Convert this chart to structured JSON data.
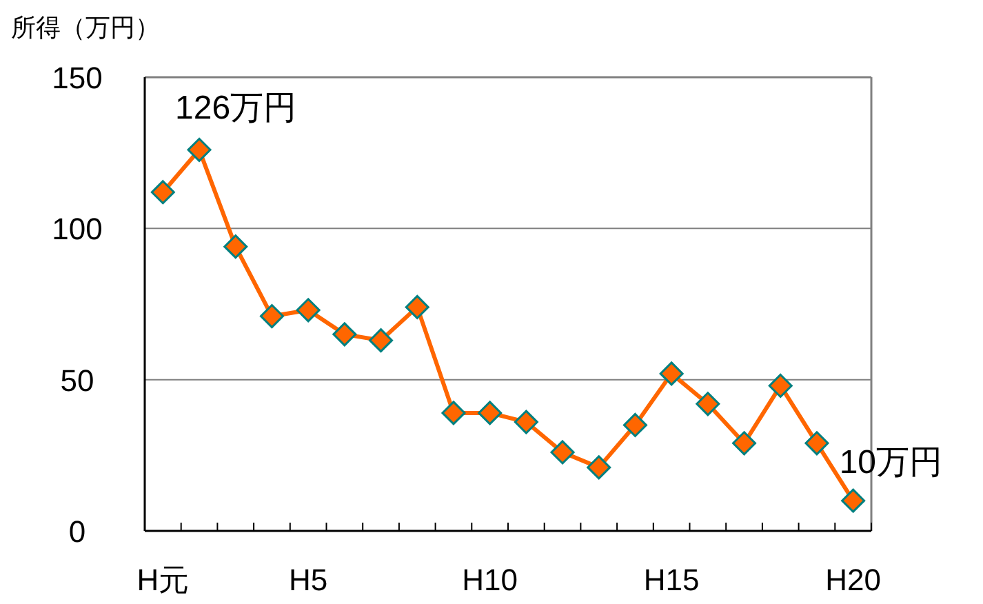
{
  "chart_data": {
    "type": "line",
    "ylabel": "所得（万円）",
    "categories": [
      "H元",
      null,
      null,
      null,
      "H5",
      null,
      null,
      null,
      null,
      "H10",
      null,
      null,
      null,
      null,
      "H15",
      null,
      null,
      null,
      null,
      "H20"
    ],
    "series": [
      {
        "color": "#ff6600",
        "values": [
          112,
          126,
          94,
          71,
          73,
          65,
          63,
          74,
          39,
          39,
          36,
          26,
          21,
          35,
          52,
          42,
          29,
          48,
          29,
          10
        ]
      }
    ],
    "ylim": [
      0,
      150
    ],
    "yticks": [
      0,
      50,
      100,
      150
    ],
    "grid": "y",
    "marker": "diamond",
    "line_style": "solid",
    "annotations": [
      "126万円",
      {
        "text": "10万円",
        "x": "H20",
        "y": 10
      }
    ]
  }
}
